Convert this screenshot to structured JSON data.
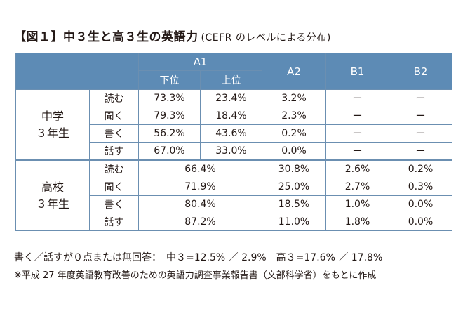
{
  "title": {
    "main": "【図１】中３生と高３生の英語力",
    "sub": "(CEFR のレベルによる分布)"
  },
  "header": {
    "a1": "A1",
    "a1_low": "下位",
    "a1_high": "上位",
    "a2": "A2",
    "b1": "B1",
    "b2": "B2"
  },
  "groups": {
    "jhs": "中学\n３年生",
    "hs": "高校\n３年生"
  },
  "jhs_rows": [
    {
      "skill": "読む",
      "a1_low": "73.3%",
      "a1_high": "23.4%",
      "a2": "3.2%",
      "b1": "ー",
      "b2": "ー"
    },
    {
      "skill": "聞く",
      "a1_low": "79.3%",
      "a1_high": "18.4%",
      "a2": "2.3%",
      "b1": "ー",
      "b2": "ー"
    },
    {
      "skill": "書く",
      "a1_low": "56.2%",
      "a1_high": "43.6%",
      "a2": "0.2%",
      "b1": "ー",
      "b2": "ー"
    },
    {
      "skill": "話す",
      "a1_low": "67.0%",
      "a1_high": "33.0%",
      "a2": "0.0%",
      "b1": "ー",
      "b2": "ー"
    }
  ],
  "hs_rows": [
    {
      "skill": "読む",
      "a1": "66.4%",
      "a2": "30.8%",
      "b1": "2.6%",
      "b2": "0.2%"
    },
    {
      "skill": "聞く",
      "a1": "71.9%",
      "a2": "25.0%",
      "b1": "2.7%",
      "b2": "0.3%"
    },
    {
      "skill": "書く",
      "a1": "80.4%",
      "a2": "18.5%",
      "b1": "1.0%",
      "b2": "0.0%"
    },
    {
      "skill": "話す",
      "a1": "87.2%",
      "a2": "11.0%",
      "b1": "1.8%",
      "b2": "0.0%"
    }
  ],
  "notes": {
    "zero_points": "書く／話すが０点または無回答：　中３=12.5% ／ 2.9%　高３=17.6% ／ 17.8%",
    "source": "※平成 27 年度英語教育改善のための英語力調査事業報告書（文部科学省）をもとに作成"
  },
  "colors": {
    "header_bg": "#5d8bb5",
    "border": "#6b8fb1"
  }
}
